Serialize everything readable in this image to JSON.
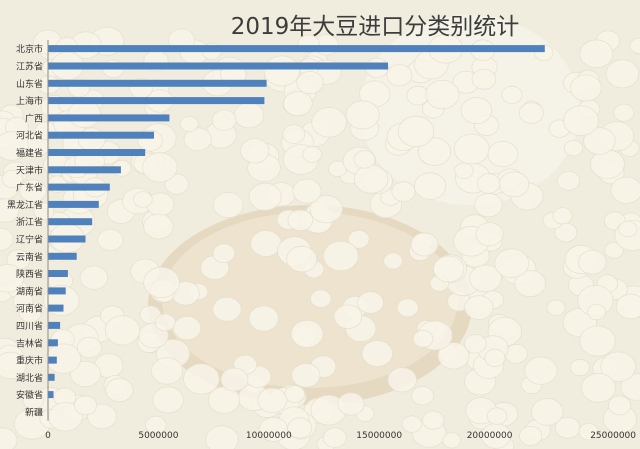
{
  "chart_data": {
    "type": "bar",
    "orientation": "horizontal",
    "title": "2019年大豆进口分类别统计",
    "categories": [
      "北京市",
      "江苏省",
      "山东省",
      "上海市",
      "广西",
      "河北省",
      "福建省",
      "天津市",
      "广东省",
      "黑龙江省",
      "浙江省",
      "辽宁省",
      "云南省",
      "陕西省",
      "湖南省",
      "河南省",
      "四川省",
      "吉林省",
      "重庆市",
      "湖北省",
      "安徽省",
      "新疆"
    ],
    "values": [
      22500000,
      15400000,
      9900000,
      9800000,
      5500000,
      4800000,
      4400000,
      3300000,
      2800000,
      2300000,
      2000000,
      1700000,
      1300000,
      900000,
      800000,
      700000,
      550000,
      450000,
      400000,
      300000,
      250000,
      0
    ],
    "xticks": [
      0,
      5000000,
      10000000,
      15000000,
      20000000,
      25000000
    ],
    "xtick_labels": [
      "0",
      "5000000",
      "10000000",
      "15000000",
      "20000000",
      "25000000"
    ],
    "xlim": [
      0,
      25000000
    ],
    "bar_color": "#4f81bd",
    "grid": false,
    "xlabel": "",
    "ylabel": ""
  },
  "background": {
    "base_color": "#ece6d2",
    "bean_color": "#f6f1e1",
    "bowl_color": "#d2b48a"
  }
}
